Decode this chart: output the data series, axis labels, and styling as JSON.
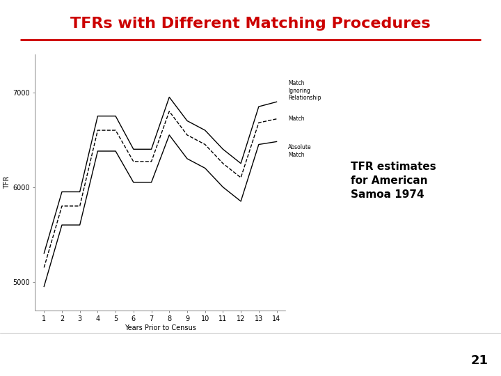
{
  "title": "TFRs with Different Matching Procedures",
  "title_color": "#cc0000",
  "title_fontsize": 16,
  "xlabel": "Years Prior to Census",
  "ylabel": "TFR",
  "xlim": [
    0.5,
    14.5
  ],
  "ylim": [
    4700,
    7400
  ],
  "yticks": [
    5000,
    6000,
    7000
  ],
  "ytick_labels": [
    "5000",
    "6000",
    "7000"
  ],
  "xticks": [
    1,
    2,
    3,
    4,
    5,
    6,
    7,
    8,
    9,
    10,
    11,
    12,
    13,
    14
  ],
  "annotation_text": "TFR estimates\nfor American\nSamoa 1974",
  "annotation_fontsize": 11,
  "page_number": "21",
  "line1_label": "Match\nIgnoring\nRelationship",
  "line2_label": "Match",
  "line3_label": "Absolute\nMatch",
  "x": [
    1,
    2,
    3,
    4,
    5,
    6,
    7,
    8,
    9,
    10,
    11,
    12,
    13,
    14
  ],
  "y_match_ignoring": [
    5300,
    5950,
    5950,
    6750,
    6750,
    6400,
    6400,
    6950,
    6700,
    6600,
    6400,
    6250,
    6850,
    6900
  ],
  "y_match": [
    5150,
    5800,
    5800,
    6600,
    6600,
    6270,
    6270,
    6800,
    6550,
    6450,
    6250,
    6100,
    6680,
    6720
  ],
  "y_absolute": [
    4950,
    5600,
    5600,
    6380,
    6380,
    6050,
    6050,
    6550,
    6300,
    6200,
    6000,
    5850,
    6450,
    6480
  ],
  "line1_style": "-",
  "line2_style": "--",
  "line3_style": "-",
  "line_color": "#000000",
  "line_width": 1.0,
  "background_color": "#ffffff",
  "separator_color": "#cc0000",
  "footer_bg": "#d8d8d8"
}
